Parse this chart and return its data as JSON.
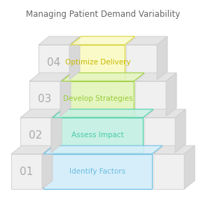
{
  "title": "Managing Patient Demand Variability",
  "title_fontsize": 8.5,
  "title_color": "#666666",
  "background_color": "#ffffff",
  "steps": [
    {
      "number": "01",
      "label": "Identify Factors",
      "fill_color": "#d6eefa",
      "border_color": "#6bbde0",
      "text_color": "#6bbde0"
    },
    {
      "number": "02",
      "label": "Assess Impact",
      "fill_color": "#c8f0e4",
      "border_color": "#48cba8",
      "text_color": "#48cba8"
    },
    {
      "number": "03",
      "label": "Develop Strategies",
      "fill_color": "#e4f5c0",
      "border_color": "#98cc38",
      "text_color": "#98cc38"
    },
    {
      "number": "04",
      "label": "Optimize Delivery",
      "fill_color": "#fafac8",
      "border_color": "#d4d030",
      "text_color": "#c8b800"
    }
  ],
  "block_face_color": "#f0f0f0",
  "block_top_color": "#e4e4e4",
  "block_right_color": "#d8d8d8",
  "block_edge_color": "#cccccc",
  "num_color": "#aaaaaa",
  "num_fontsize": 11,
  "label_fontsize": 7.5,
  "fig_w": 2.94,
  "fig_h": 3.0,
  "dpi": 100
}
